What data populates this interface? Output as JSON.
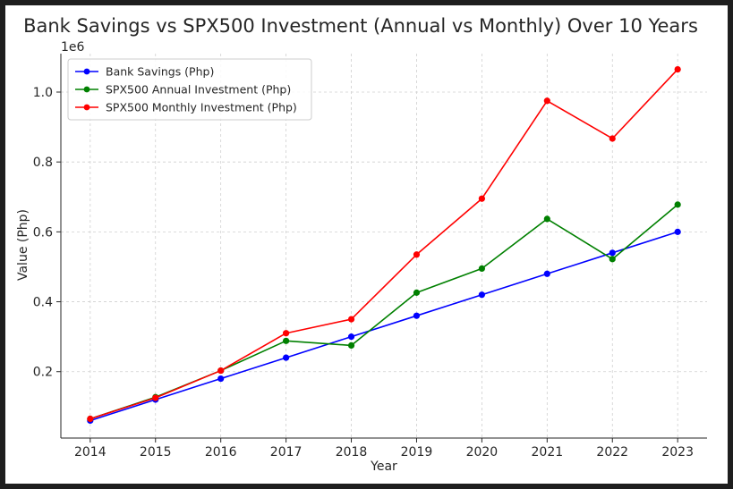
{
  "chart_data": {
    "type": "line",
    "title": "Bank Savings vs SPX500 Investment (Annual vs Monthly) Over 10 Years",
    "xlabel": "Year",
    "ylabel": "Value (Php)",
    "y_offset_label": "1e6",
    "x": [
      2014,
      2015,
      2016,
      2017,
      2018,
      2019,
      2020,
      2021,
      2022,
      2023
    ],
    "xlim": [
      2013.55,
      2023.45
    ],
    "ylim": [
      0.01,
      1.11
    ],
    "yticks": [
      0.2,
      0.4,
      0.6,
      0.8,
      1.0
    ],
    "ytick_labels": [
      "0.2",
      "0.4",
      "0.6",
      "0.8",
      "1.0"
    ],
    "grid": true,
    "legend_position": "top-left",
    "series": [
      {
        "name": "Bank Savings (Php)",
        "color": "#0000ff",
        "values": [
          0.06,
          0.12,
          0.18,
          0.24,
          0.3,
          0.36,
          0.42,
          0.48,
          0.54,
          0.6
        ]
      },
      {
        "name": "SPX500 Annual Investment (Php)",
        "color": "#008000",
        "values": [
          0.065,
          0.127,
          0.203,
          0.288,
          0.275,
          0.426,
          0.495,
          0.637,
          0.522,
          0.678
        ]
      },
      {
        "name": "SPX500 Monthly Investment (Php)",
        "color": "#ff0000",
        "values": [
          0.065,
          0.125,
          0.203,
          0.31,
          0.35,
          0.535,
          0.695,
          0.975,
          0.867,
          1.065
        ]
      }
    ]
  }
}
